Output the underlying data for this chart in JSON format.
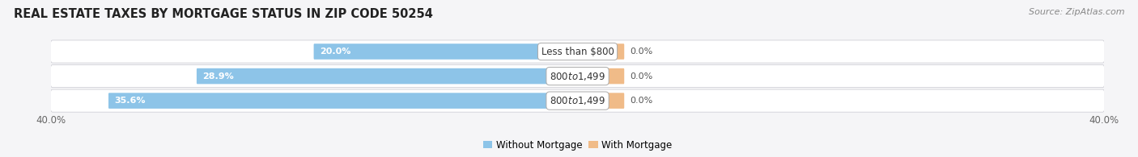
{
  "title": "REAL ESTATE TAXES BY MORTGAGE STATUS IN ZIP CODE 50254",
  "source": "Source: ZipAtlas.com",
  "rows": [
    {
      "label": "Less than $800",
      "without_mortgage": 20.0,
      "with_mortgage": 3.5,
      "without_label": "20.0%",
      "with_label": "0.0%"
    },
    {
      "label": "$800 to $1,499",
      "without_mortgage": 28.9,
      "with_mortgage": 3.5,
      "without_label": "28.9%",
      "with_label": "0.0%"
    },
    {
      "label": "$800 to $1,499",
      "without_mortgage": 35.6,
      "with_mortgage": 3.5,
      "without_label": "35.6%",
      "with_label": "0.0%"
    }
  ],
  "xlim": 40.0,
  "bar_color_without": "#8dc4e8",
  "bar_color_with": "#f0bb88",
  "bg_color_row": "#e8e8ec",
  "bg_color_fig": "#f5f5f7",
  "bg_color_row_inner": "#dfe0e8",
  "axis_label_left": "40.0%",
  "axis_label_right": "40.0%",
  "title_fontsize": 10.5,
  "source_fontsize": 8,
  "bar_label_fontsize": 8,
  "category_fontsize": 8.5,
  "legend_fontsize": 8.5
}
